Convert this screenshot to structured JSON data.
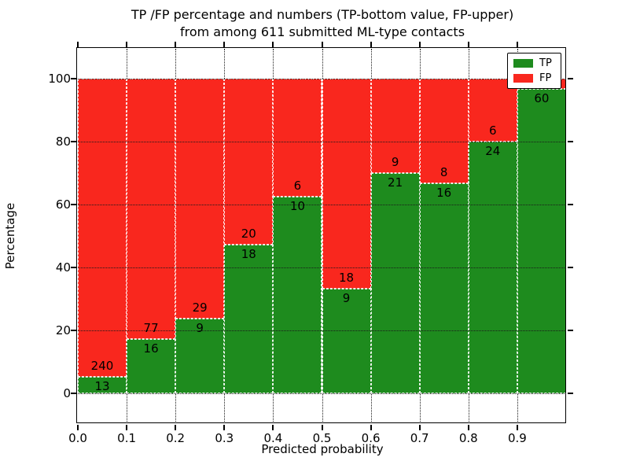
{
  "chart_data": {
    "type": "bar",
    "stacked": true,
    "values_are": "counts per bin; bar heights are percent of bin total",
    "title_lines": [
      "TP /FP percentage and numbers (TP-bottom value, FP-upper)",
      "from among 611 submitted ML-type contacts"
    ],
    "total_contacts": 611,
    "xlabel": "Predicted probability",
    "ylabel": "Percentage",
    "xlim": [
      0.0,
      1.0
    ],
    "ylim": [
      -10,
      110
    ],
    "bin_width": 0.1,
    "x_tick_labels": [
      "0.0",
      "0.1",
      "0.2",
      "0.3",
      "0.4",
      "0.5",
      "0.6",
      "0.7",
      "0.8",
      "0.9"
    ],
    "y_tick_labels": [
      "0",
      "20",
      "40",
      "60",
      "80",
      "100"
    ],
    "y_tick_values": [
      0,
      20,
      40,
      60,
      80,
      100
    ],
    "grid": "dotted black, drawn over bars",
    "legend": {
      "position": "upper right",
      "entries": [
        {
          "name": "TP",
          "color": "#1e8b1e"
        },
        {
          "name": "FP",
          "color": "#f9271e"
        }
      ]
    },
    "bins": [
      {
        "x_start": 0.0,
        "tp": 13,
        "fp": 240,
        "fp_label_visible": true
      },
      {
        "x_start": 0.1,
        "tp": 16,
        "fp": 77,
        "fp_label_visible": true
      },
      {
        "x_start": 0.2,
        "tp": 9,
        "fp": 29,
        "fp_label_visible": true
      },
      {
        "x_start": 0.3,
        "tp": 18,
        "fp": 20,
        "fp_label_visible": true
      },
      {
        "x_start": 0.4,
        "tp": 10,
        "fp": 6,
        "fp_label_visible": true
      },
      {
        "x_start": 0.5,
        "tp": 9,
        "fp": 18,
        "fp_label_visible": true
      },
      {
        "x_start": 0.6,
        "tp": 21,
        "fp": 9,
        "fp_label_visible": true
      },
      {
        "x_start": 0.7,
        "tp": 16,
        "fp": 8,
        "fp_label_visible": true
      },
      {
        "x_start": 0.8,
        "tp": 24,
        "fp": 6,
        "fp_label_visible": true
      },
      {
        "x_start": 0.9,
        "tp": 60,
        "fp": 2,
        "fp_label_visible": false
      }
    ]
  }
}
